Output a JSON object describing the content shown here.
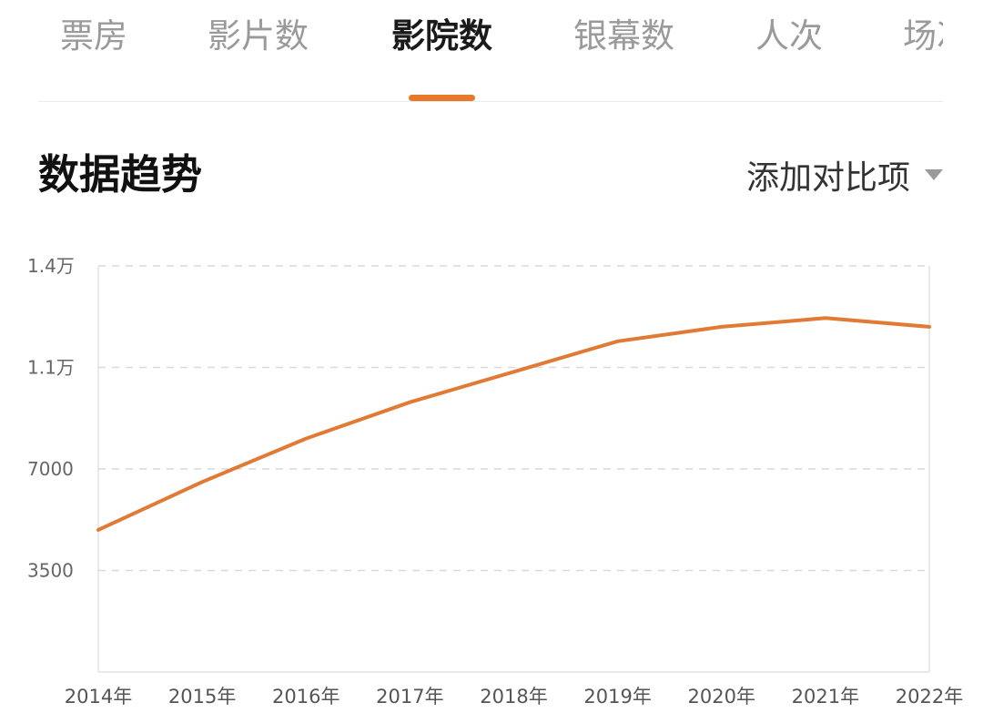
{
  "tabs": [
    {
      "label": "票房",
      "active": false
    },
    {
      "label": "影片数",
      "active": false
    },
    {
      "label": "影院数",
      "active": true
    },
    {
      "label": "银幕数",
      "active": false
    },
    {
      "label": "人次",
      "active": false
    },
    {
      "label": "场次",
      "active": false
    }
  ],
  "section": {
    "title": "数据趋势",
    "compare_label": "添加对比项",
    "compare_icon": "caret-down-icon"
  },
  "colors": {
    "accent": "#e8792c",
    "line": "#e07a34",
    "grid": "#d9d9d9",
    "axis": "#e2e2e2"
  },
  "chart_data": {
    "type": "line",
    "title": "",
    "xlabel": "",
    "ylabel": "",
    "ylim": [
      0,
      14000
    ],
    "yticks": [
      {
        "value": 3500,
        "label": "3500"
      },
      {
        "value": 7000,
        "label": "7000"
      },
      {
        "value": 10500,
        "label": "1.1万"
      },
      {
        "value": 14000,
        "label": "1.4万"
      }
    ],
    "categories": [
      "2014年",
      "2015年",
      "2016年",
      "2017年",
      "2018年",
      "2019年",
      "2020年",
      "2021年",
      "2022年"
    ],
    "series": [
      {
        "values": [
          4900,
          6550,
          8050,
          9300,
          10350,
          11400,
          11900,
          12200,
          11900
        ]
      }
    ],
    "grid": true,
    "legend": "none"
  }
}
